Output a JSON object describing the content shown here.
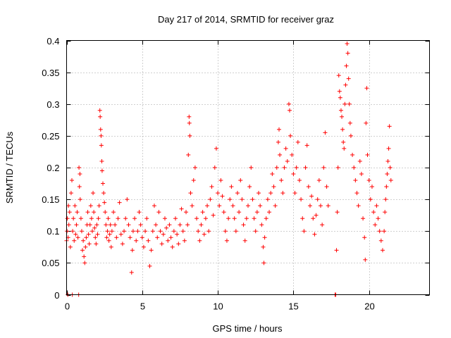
{
  "chart_data": {
    "type": "scatter",
    "title": "Day 217 of 2014, SRMTID for receiver graz",
    "xlabel": "GPS time / hours",
    "ylabel": "SRMTID / TECUs",
    "xlim": [
      0,
      24
    ],
    "ylim": [
      0,
      0.4
    ],
    "grid": true,
    "marker": "+",
    "color": "#ff0000",
    "x_ticks": [
      0,
      5,
      10,
      15,
      20
    ],
    "x_tick_labels": [
      "0",
      "5",
      "10",
      "15",
      "20"
    ],
    "y_ticks": [
      0,
      0.05,
      0.1,
      0.15,
      0.2,
      0.25,
      0.3,
      0.35,
      0.4
    ],
    "y_tick_labels": [
      "0",
      "0.05",
      "0.1",
      "0.15",
      "0.2",
      "0.25",
      "0.3",
      "0.35",
      "0.4"
    ],
    "series": [
      {
        "name": "SRMTID",
        "points": [
          [
            0.0,
            0.085
          ],
          [
            0.03,
            0.1
          ],
          [
            0.05,
            0.12
          ],
          [
            0.08,
            0.0
          ],
          [
            0.1,
            0.09
          ],
          [
            0.12,
            0.14
          ],
          [
            0.15,
            0.11
          ],
          [
            0.2,
            0.13
          ],
          [
            0.25,
            0.075
          ],
          [
            0.3,
            0.16
          ],
          [
            0.35,
            0.18
          ],
          [
            0.38,
            0.0
          ],
          [
            0.4,
            0.1
          ],
          [
            0.45,
            0.12
          ],
          [
            0.5,
            0.085
          ],
          [
            0.55,
            0.14
          ],
          [
            0.6,
            0.095
          ],
          [
            0.65,
            0.11
          ],
          [
            0.7,
            0.13
          ],
          [
            0.75,
            0.09
          ],
          [
            0.8,
            0.0
          ],
          [
            0.82,
            0.2
          ],
          [
            0.85,
            0.17
          ],
          [
            0.88,
            0.19
          ],
          [
            0.9,
            0.15
          ],
          [
            0.95,
            0.12
          ],
          [
            1.0,
            0.1
          ],
          [
            1.05,
            0.07
          ],
          [
            1.1,
            0.085
          ],
          [
            1.15,
            0.06
          ],
          [
            1.2,
            0.05
          ],
          [
            1.25,
            0.075
          ],
          [
            1.3,
            0.09
          ],
          [
            1.35,
            0.11
          ],
          [
            1.4,
            0.13
          ],
          [
            1.45,
            0.095
          ],
          [
            1.5,
            0.08
          ],
          [
            1.55,
            0.11
          ],
          [
            1.6,
            0.14
          ],
          [
            1.65,
            0.12
          ],
          [
            1.7,
            0.1
          ],
          [
            1.75,
            0.16
          ],
          [
            1.8,
            0.13
          ],
          [
            1.85,
            0.105
          ],
          [
            1.9,
            0.09
          ],
          [
            1.95,
            0.08
          ],
          [
            2.0,
            0.11
          ],
          [
            2.05,
            0.095
          ],
          [
            2.1,
            0.12
          ],
          [
            2.15,
            0.14
          ],
          [
            2.2,
            0.29
          ],
          [
            2.22,
            0.28
          ],
          [
            2.25,
            0.26
          ],
          [
            2.28,
            0.25
          ],
          [
            2.3,
            0.235
          ],
          [
            2.33,
            0.21
          ],
          [
            2.35,
            0.195
          ],
          [
            2.4,
            0.175
          ],
          [
            2.45,
            0.16
          ],
          [
            2.5,
            0.145
          ],
          [
            2.55,
            0.13
          ],
          [
            2.6,
            0.11
          ],
          [
            2.65,
            0.09
          ],
          [
            2.7,
            0.1
          ],
          [
            2.75,
            0.12
          ],
          [
            2.8,
            0.085
          ],
          [
            2.85,
            0.095
          ],
          [
            2.9,
            0.11
          ],
          [
            2.95,
            0.075
          ],
          [
            3.0,
            0.1
          ],
          [
            3.1,
            0.13
          ],
          [
            3.2,
            0.11
          ],
          [
            3.3,
            0.09
          ],
          [
            3.4,
            0.12
          ],
          [
            3.5,
            0.145
          ],
          [
            3.6,
            0.095
          ],
          [
            3.7,
            0.08
          ],
          [
            3.8,
            0.1
          ],
          [
            3.9,
            0.12
          ],
          [
            4.0,
            0.15
          ],
          [
            4.1,
            0.11
          ],
          [
            4.2,
            0.09
          ],
          [
            4.3,
            0.035
          ],
          [
            4.35,
            0.07
          ],
          [
            4.4,
            0.1
          ],
          [
            4.5,
            0.12
          ],
          [
            4.6,
            0.085
          ],
          [
            4.7,
            0.1
          ],
          [
            4.8,
            0.13
          ],
          [
            4.9,
            0.11
          ],
          [
            5.0,
            0.09
          ],
          [
            5.1,
            0.075
          ],
          [
            5.2,
            0.1
          ],
          [
            5.3,
            0.12
          ],
          [
            5.4,
            0.085
          ],
          [
            5.5,
            0.045
          ],
          [
            5.6,
            0.07
          ],
          [
            5.7,
            0.1
          ],
          [
            5.8,
            0.14
          ],
          [
            5.9,
            0.11
          ],
          [
            6.0,
            0.09
          ],
          [
            6.1,
            0.13
          ],
          [
            6.2,
            0.1
          ],
          [
            6.3,
            0.08
          ],
          [
            6.4,
            0.095
          ],
          [
            6.5,
            0.12
          ],
          [
            6.6,
            0.105
          ],
          [
            6.7,
            0.085
          ],
          [
            6.8,
            0.11
          ],
          [
            6.9,
            0.09
          ],
          [
            7.0,
            0.075
          ],
          [
            7.1,
            0.1
          ],
          [
            7.2,
            0.12
          ],
          [
            7.3,
            0.095
          ],
          [
            7.4,
            0.08
          ],
          [
            7.5,
            0.11
          ],
          [
            7.6,
            0.135
          ],
          [
            7.7,
            0.1
          ],
          [
            7.8,
            0.085
          ],
          [
            7.9,
            0.13
          ],
          [
            8.0,
            0.11
          ],
          [
            8.05,
            0.22
          ],
          [
            8.1,
            0.28
          ],
          [
            8.12,
            0.27
          ],
          [
            8.15,
            0.25
          ],
          [
            8.2,
            0.16
          ],
          [
            8.3,
            0.14
          ],
          [
            8.4,
            0.18
          ],
          [
            8.5,
            0.2
          ],
          [
            8.6,
            0.12
          ],
          [
            8.7,
            0.1
          ],
          [
            8.8,
            0.085
          ],
          [
            8.9,
            0.11
          ],
          [
            9.0,
            0.13
          ],
          [
            9.1,
            0.095
          ],
          [
            9.2,
            0.12
          ],
          [
            9.3,
            0.14
          ],
          [
            9.4,
            0.1
          ],
          [
            9.5,
            0.15
          ],
          [
            9.6,
            0.17
          ],
          [
            9.7,
            0.125
          ],
          [
            9.8,
            0.2
          ],
          [
            9.9,
            0.23
          ],
          [
            10.0,
            0.16
          ],
          [
            10.1,
            0.14
          ],
          [
            10.2,
            0.18
          ],
          [
            10.3,
            0.155
          ],
          [
            10.4,
            0.13
          ],
          [
            10.5,
            0.1
          ],
          [
            10.6,
            0.085
          ],
          [
            10.7,
            0.12
          ],
          [
            10.8,
            0.15
          ],
          [
            10.9,
            0.17
          ],
          [
            11.0,
            0.14
          ],
          [
            11.1,
            0.12
          ],
          [
            11.2,
            0.1
          ],
          [
            11.3,
            0.16
          ],
          [
            11.4,
            0.13
          ],
          [
            11.5,
            0.18
          ],
          [
            11.6,
            0.15
          ],
          [
            11.7,
            0.11
          ],
          [
            11.8,
            0.085
          ],
          [
            11.9,
            0.12
          ],
          [
            12.0,
            0.14
          ],
          [
            12.1,
            0.17
          ],
          [
            12.2,
            0.2
          ],
          [
            12.3,
            0.15
          ],
          [
            12.4,
            0.12
          ],
          [
            12.5,
            0.1
          ],
          [
            12.6,
            0.13
          ],
          [
            12.7,
            0.16
          ],
          [
            12.8,
            0.14
          ],
          [
            12.9,
            0.11
          ],
          [
            13.0,
            0.075
          ],
          [
            13.05,
            0.05
          ],
          [
            13.1,
            0.09
          ],
          [
            13.2,
            0.12
          ],
          [
            13.3,
            0.15
          ],
          [
            13.4,
            0.13
          ],
          [
            13.5,
            0.16
          ],
          [
            13.6,
            0.19
          ],
          [
            13.7,
            0.17
          ],
          [
            13.8,
            0.14
          ],
          [
            13.9,
            0.2
          ],
          [
            14.0,
            0.24
          ],
          [
            14.05,
            0.26
          ],
          [
            14.1,
            0.22
          ],
          [
            14.2,
            0.18
          ],
          [
            14.3,
            0.16
          ],
          [
            14.4,
            0.2
          ],
          [
            14.5,
            0.23
          ],
          [
            14.6,
            0.21
          ],
          [
            14.7,
            0.3
          ],
          [
            14.75,
            0.29
          ],
          [
            14.8,
            0.25
          ],
          [
            14.9,
            0.22
          ],
          [
            15.0,
            0.19
          ],
          [
            15.1,
            0.16
          ],
          [
            15.2,
            0.2
          ],
          [
            15.3,
            0.24
          ],
          [
            15.4,
            0.18
          ],
          [
            15.5,
            0.15
          ],
          [
            15.6,
            0.12
          ],
          [
            15.7,
            0.1
          ],
          [
            15.8,
            0.2
          ],
          [
            15.9,
            0.235
          ],
          [
            16.0,
            0.17
          ],
          [
            16.1,
            0.14
          ],
          [
            16.2,
            0.155
          ],
          [
            16.3,
            0.12
          ],
          [
            16.4,
            0.095
          ],
          [
            16.5,
            0.125
          ],
          [
            16.6,
            0.15
          ],
          [
            16.7,
            0.18
          ],
          [
            16.8,
            0.14
          ],
          [
            16.9,
            0.11
          ],
          [
            17.0,
            0.2
          ],
          [
            17.1,
            0.255
          ],
          [
            17.2,
            0.17
          ],
          [
            17.3,
            0.14
          ],
          [
            17.75,
            0.0
          ],
          [
            17.8,
            0.0
          ],
          [
            17.85,
            0.07
          ],
          [
            17.9,
            0.13
          ],
          [
            17.95,
            0.2
          ],
          [
            18.0,
            0.345
          ],
          [
            18.05,
            0.32
          ],
          [
            18.1,
            0.31
          ],
          [
            18.15,
            0.29
          ],
          [
            18.2,
            0.28
          ],
          [
            18.25,
            0.26
          ],
          [
            18.3,
            0.24
          ],
          [
            18.35,
            0.23
          ],
          [
            18.4,
            0.3
          ],
          [
            18.45,
            0.33
          ],
          [
            18.5,
            0.36
          ],
          [
            18.55,
            0.395
          ],
          [
            18.6,
            0.38
          ],
          [
            18.65,
            0.34
          ],
          [
            18.7,
            0.3
          ],
          [
            18.75,
            0.27
          ],
          [
            18.8,
            0.25
          ],
          [
            18.9,
            0.22
          ],
          [
            19.0,
            0.2
          ],
          [
            19.1,
            0.18
          ],
          [
            19.2,
            0.16
          ],
          [
            19.3,
            0.14
          ],
          [
            19.4,
            0.21
          ],
          [
            19.5,
            0.19
          ],
          [
            19.6,
            0.12
          ],
          [
            19.7,
            0.09
          ],
          [
            19.75,
            0.055
          ],
          [
            19.8,
            0.27
          ],
          [
            19.85,
            0.325
          ],
          [
            19.9,
            0.22
          ],
          [
            20.0,
            0.18
          ],
          [
            20.1,
            0.15
          ],
          [
            20.2,
            0.17
          ],
          [
            20.3,
            0.13
          ],
          [
            20.4,
            0.11
          ],
          [
            20.5,
            0.14
          ],
          [
            20.6,
            0.12
          ],
          [
            20.7,
            0.1
          ],
          [
            20.8,
            0.085
          ],
          [
            20.9,
            0.07
          ],
          [
            21.0,
            0.1
          ],
          [
            21.05,
            0.13
          ],
          [
            21.1,
            0.15
          ],
          [
            21.15,
            0.17
          ],
          [
            21.2,
            0.19
          ],
          [
            21.25,
            0.21
          ],
          [
            21.3,
            0.23
          ],
          [
            21.35,
            0.265
          ],
          [
            21.4,
            0.2
          ],
          [
            21.45,
            0.18
          ]
        ]
      }
    ]
  }
}
